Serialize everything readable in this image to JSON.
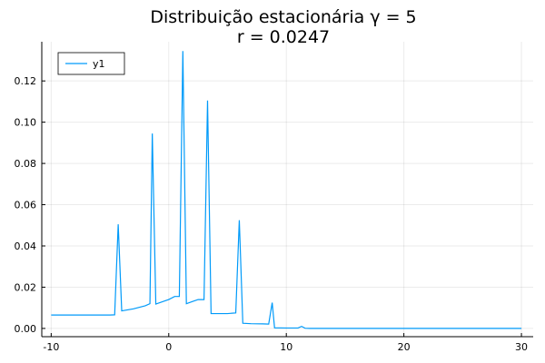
{
  "chart_data": {
    "type": "line",
    "title": "Distribuição estacionária γ = 5",
    "subtitle": "r = 0.0247",
    "xlabel": "",
    "ylabel": "",
    "xlim": [
      -10.8,
      31.0
    ],
    "ylim": [
      -0.004,
      0.139
    ],
    "xticks": [
      -10,
      0,
      10,
      20,
      30
    ],
    "yticks": [
      0.0,
      0.02,
      0.04,
      0.06,
      0.08,
      0.1,
      0.12
    ],
    "ytick_labels": [
      "0.00",
      "0.02",
      "0.04",
      "0.06",
      "0.08",
      "0.10",
      "0.12"
    ],
    "grid": true,
    "legend": "top-left",
    "series": [
      {
        "name": "y1",
        "color": "#009AF9",
        "x": [
          -10,
          -9,
          -8,
          -7,
          -6,
          -5,
          -4.6,
          -4.3,
          -4.0,
          -3,
          -2,
          -1.6,
          -1.4,
          -1.1,
          -0.5,
          0,
          0.5,
          0.9,
          1.2,
          1.5,
          2,
          2.5,
          3.0,
          3.3,
          3.6,
          4,
          5,
          5.7,
          6.0,
          6.3,
          7,
          8,
          8.5,
          8.8,
          9.0,
          10,
          11,
          11.3,
          11.6,
          12,
          15,
          20,
          25,
          30
        ],
        "y": [
          0.0065,
          0.0065,
          0.0065,
          0.0065,
          0.0065,
          0.0065,
          0.0066,
          0.0505,
          0.0085,
          0.0095,
          0.011,
          0.012,
          0.0945,
          0.0118,
          0.013,
          0.014,
          0.0155,
          0.0155,
          0.1345,
          0.012,
          0.013,
          0.014,
          0.014,
          0.1105,
          0.0072,
          0.0072,
          0.0072,
          0.0075,
          0.0525,
          0.0025,
          0.0023,
          0.0022,
          0.0021,
          0.0125,
          0.0003,
          0.0002,
          0.0002,
          0.001,
          0.0001,
          0.0,
          0.0,
          0.0,
          0.0,
          0.0
        ]
      }
    ]
  }
}
